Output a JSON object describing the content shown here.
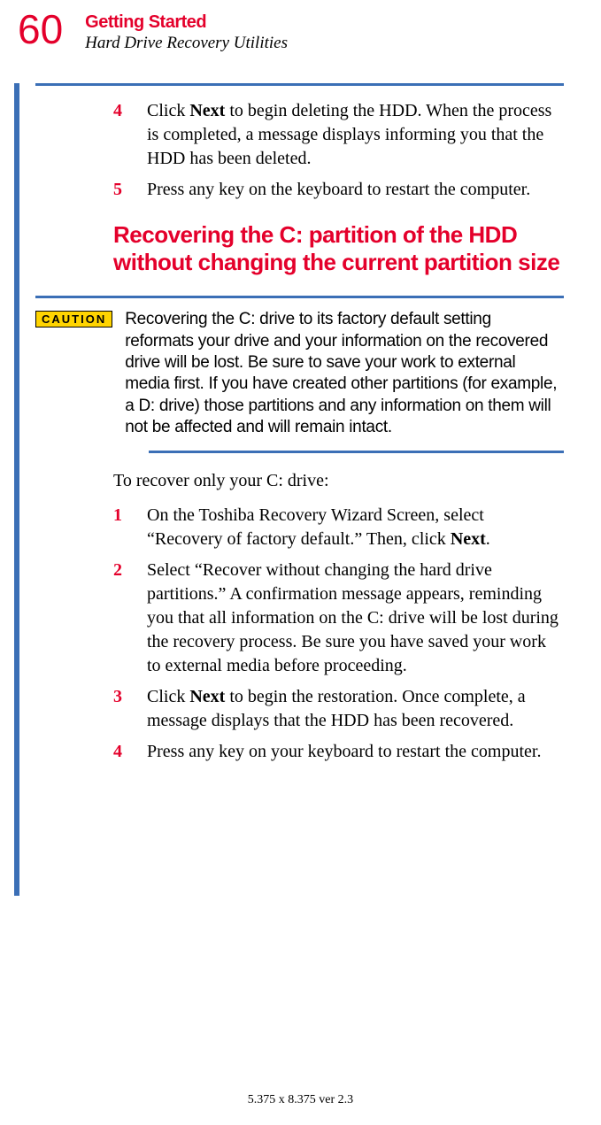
{
  "colors": {
    "red": "#e4002b",
    "blue": "#3b6fb6",
    "caution_bg": "#ffd400",
    "black": "#000000"
  },
  "header": {
    "page_number": "60",
    "chapter": "Getting Started",
    "section": "Hard Drive Recovery Utilities"
  },
  "steps_top": [
    {
      "num": "4",
      "text_parts": [
        "Click ",
        "Next",
        " to begin deleting the HDD. When the process is completed, a message displays informing you that the HDD has been deleted."
      ],
      "bold_indices": [
        1
      ]
    },
    {
      "num": "5",
      "text_parts": [
        "Press any key on the keyboard to restart the computer."
      ],
      "bold_indices": []
    }
  ],
  "subsection_heading": "Recovering the C: partition of the HDD without changing the current partition size",
  "caution": {
    "label": "CAUTION",
    "text": "Recovering the C: drive to its factory default setting reformats your drive and your information on the recovered drive will be lost. Be sure to save your work to external media first. If you have created other partitions (for example, a D: drive) those partitions and any information on them will not be affected and will remain intact."
  },
  "intro": "To recover only your C: drive:",
  "steps_bottom": [
    {
      "num": "1",
      "text_parts": [
        "On the Toshiba Recovery Wizard Screen, select “Recovery of factory default.” Then, click ",
        "Next",
        "."
      ],
      "bold_indices": [
        1
      ]
    },
    {
      "num": "2",
      "text_parts": [
        "Select “Recover without changing the hard drive partitions.” A confirmation message appears, reminding you that all information on the C: drive will be lost during the recovery process. Be sure you have saved your work to external media before proceeding."
      ],
      "bold_indices": []
    },
    {
      "num": "3",
      "text_parts": [
        "Click ",
        "Next",
        " to begin the restoration. Once complete, a message displays that the HDD has been recovered."
      ],
      "bold_indices": [
        1
      ]
    },
    {
      "num": "4",
      "text_parts": [
        "Press any key on your keyboard to restart the computer."
      ],
      "bold_indices": []
    }
  ],
  "footer": "5.375 x 8.375 ver 2.3"
}
